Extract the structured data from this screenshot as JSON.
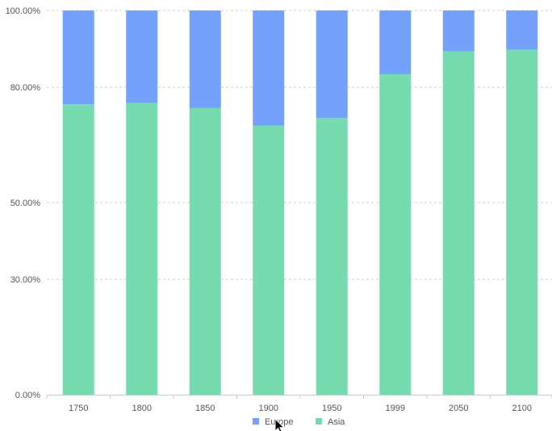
{
  "chart_data": {
    "type": "bar",
    "stacked": true,
    "percent": true,
    "categories": [
      "1750",
      "1800",
      "1850",
      "1900",
      "1950",
      "1999",
      "2050",
      "2100"
    ],
    "series": [
      {
        "name": "Asia",
        "color": "#76dcb0",
        "values": [
          75.6,
          75.9,
          74.6,
          70.0,
          72.0,
          83.4,
          89.4,
          89.8
        ]
      },
      {
        "name": "Europe",
        "color": "#73a1fb",
        "values": [
          24.4,
          24.1,
          25.4,
          30.0,
          28.0,
          16.6,
          10.6,
          10.2
        ]
      }
    ],
    "y_ticks": [
      0,
      30,
      50,
      80,
      100
    ],
    "y_tick_labels": [
      "0.00%",
      "30.00%",
      "50.00%",
      "80.00%",
      "100.00%"
    ],
    "ylim": [
      0,
      100
    ],
    "grid": "horizontal-dashed",
    "legend": {
      "placement": "bottom-center",
      "order": [
        "Europe",
        "Asia"
      ]
    },
    "cursor": "arrow-pointer-icon"
  }
}
